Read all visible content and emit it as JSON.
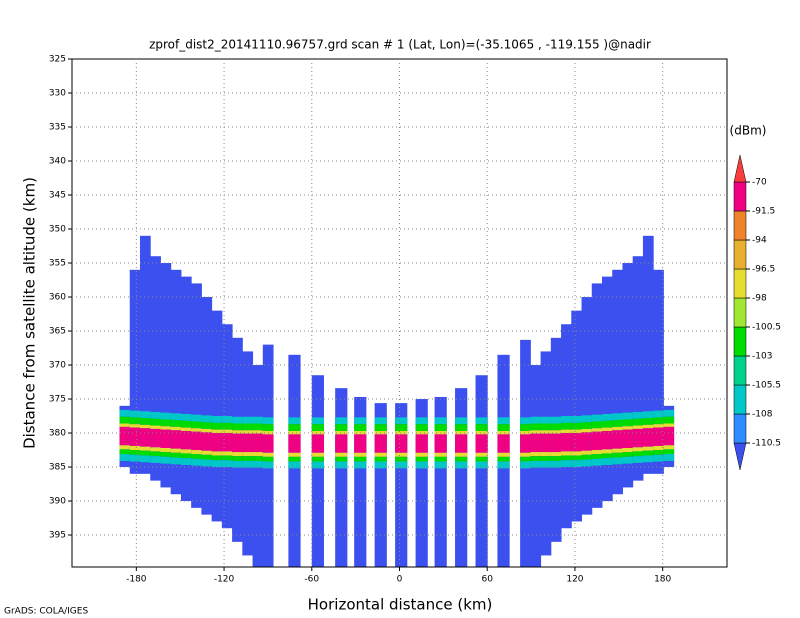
{
  "chart_data": {
    "type": "profile",
    "title": "zprof_dist2_20141110.96757.grd  scan # 1  (Lat, Lon)=(-35.1065 , -119.155 )@nadir",
    "xlabel": "Horizontal distance (km)",
    "ylabel": "Distance from satellite altitude (km)",
    "footer": "GrADS: COLA/IGES",
    "colorbar_unit": "(dBm)",
    "xlim": [
      -224,
      224
    ],
    "ylim": [
      399.7,
      325
    ],
    "xticks": [
      -180,
      -120,
      -60,
      0,
      60,
      120,
      180
    ],
    "yticks": [
      325,
      330,
      335,
      340,
      345,
      350,
      355,
      360,
      365,
      370,
      375,
      380,
      385,
      390,
      395
    ],
    "grid": true,
    "levels": [
      -110.5,
      -108,
      -105.5,
      -103,
      -100.5,
      -98,
      -96.5,
      -94,
      -91.5,
      -70
    ],
    "colors": [
      "#3c50f0",
      "#2d8cff",
      "#00c8c8",
      "#00d28c",
      "#00dc00",
      "#a0e632",
      "#e6dc32",
      "#e6af2d",
      "#f08228",
      "#f00082",
      "#fa3c3c"
    ],
    "swath_value": -115,
    "x": [
      -188,
      -181,
      -174,
      -167,
      -160,
      -153,
      -146,
      -139,
      -132,
      -125,
      -118,
      -111,
      -104,
      -97,
      -90,
      -72,
      -56,
      -40,
      -27,
      -13,
      1,
      15,
      28,
      42,
      56,
      71,
      86,
      93,
      100,
      107,
      114,
      121,
      128,
      135,
      142,
      149,
      156,
      163,
      170,
      177,
      184
    ],
    "top": [
      376,
      356,
      351,
      354,
      355,
      356,
      357,
      358,
      360,
      362,
      364,
      366,
      368,
      370,
      367,
      368.5,
      371.5,
      373.4,
      374.7,
      375.6,
      375.6,
      375,
      374.7,
      373.4,
      371.5,
      368.5,
      366.3,
      370,
      368,
      366,
      364,
      362,
      360,
      358,
      357,
      356,
      355,
      354,
      351,
      356,
      376
    ],
    "bottom": [
      385,
      386,
      386,
      387,
      388,
      389,
      390,
      391,
      392,
      393,
      394,
      396,
      398,
      399.7,
      399.7,
      399.7,
      399.7,
      399.7,
      399.7,
      399.7,
      399.7,
      399.7,
      399.7,
      399.7,
      399.7,
      399.7,
      399.7,
      399.7,
      398,
      396,
      394,
      393,
      392,
      391,
      390,
      389,
      388,
      387,
      386,
      386,
      385
    ],
    "surface": [
      380.6,
      380.7,
      380.8,
      380.9,
      381,
      381.1,
      381.2,
      381.3,
      381.4,
      381.5,
      381.5,
      381.6,
      381.6,
      381.6,
      381.7,
      381.7,
      381.7,
      381.7,
      381.7,
      381.7,
      381.7,
      381.7,
      381.7,
      381.7,
      381.7,
      381.7,
      381.7,
      381.6,
      381.6,
      381.6,
      381.5,
      381.5,
      381.4,
      381.3,
      381.2,
      381.1,
      381,
      380.9,
      380.8,
      380.7,
      380.6
    ],
    "band_offsets": [
      -4,
      -3,
      -2,
      -1.5,
      1.2,
      1.8,
      2.5,
      3.5
    ],
    "band_values": [
      -106,
      -102,
      -97,
      -80,
      -97,
      -101,
      -106
    ]
  }
}
